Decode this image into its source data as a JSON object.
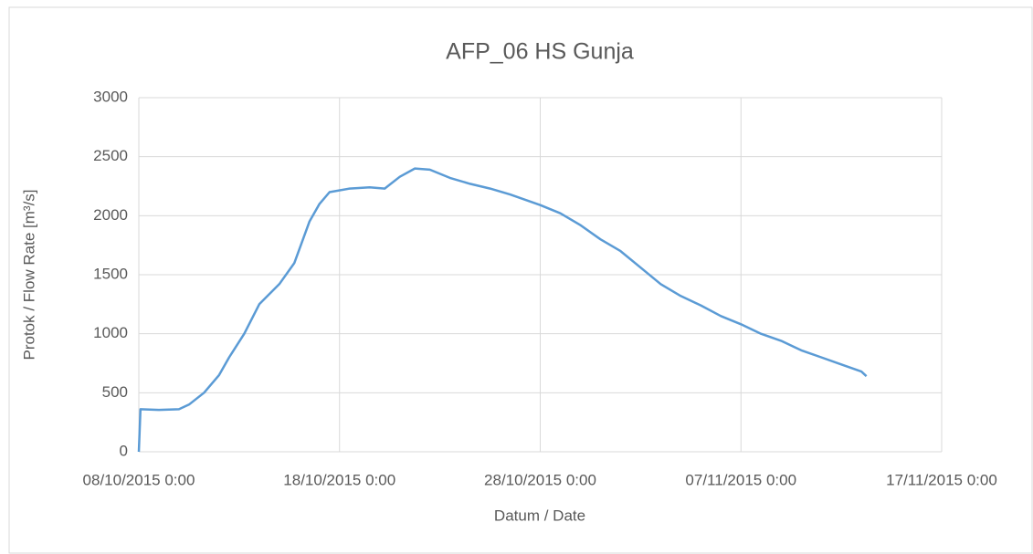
{
  "chart_data": {
    "type": "line",
    "title": "AFP_06 HS Gunja",
    "x_label": "Datum / Date",
    "y_label": "Protok / Flow Rate [m³/s]",
    "x": [
      "08/10/2015 0:00",
      "08/10/2015 2:00",
      "09/10/2015 0:00",
      "10/10/2015 0:00",
      "10/10/2015 12:00",
      "11/10/2015 6:00",
      "12/10/2015 0:00",
      "12/10/2015 12:00",
      "13/10/2015 6:00",
      "14/10/2015 0:00",
      "15/10/2015 0:00",
      "15/10/2015 18:00",
      "16/10/2015 12:00",
      "17/10/2015 0:00",
      "17/10/2015 12:00",
      "18/10/2015 12:00",
      "19/10/2015 12:00",
      "20/10/2015 6:00",
      "21/10/2015 0:00",
      "21/10/2015 18:00",
      "22/10/2015 12:00",
      "23/10/2015 12:00",
      "24/10/2015 12:00",
      "25/10/2015 12:00",
      "26/10/2015 12:00",
      "27/10/2015 12:00",
      "28/10/2015 0:00",
      "29/10/2015 0:00",
      "30/10/2015 0:00",
      "31/10/2015 0:00",
      "01/11/2015 0:00",
      "02/11/2015 0:00",
      "03/11/2015 0:00",
      "04/11/2015 0:00",
      "05/11/2015 0:00",
      "06/11/2015 0:00",
      "07/11/2015 0:00",
      "08/11/2015 0:00",
      "09/11/2015 0:00",
      "10/11/2015 0:00",
      "11/11/2015 0:00",
      "12/11/2015 0:00",
      "13/11/2015 0:00",
      "13/11/2015 6:00"
    ],
    "series": [
      {
        "name": "AFP_06 HS Gunja",
        "color": "#5b9bd5",
        "values": [
          0,
          360,
          355,
          360,
          400,
          500,
          650,
          800,
          1000,
          1250,
          1420,
          1600,
          1950,
          2100,
          2200,
          2230,
          2240,
          2230,
          2330,
          2400,
          2390,
          2320,
          2270,
          2230,
          2180,
          2120,
          2090,
          2020,
          1920,
          1800,
          1700,
          1560,
          1420,
          1320,
          1240,
          1150,
          1080,
          1000,
          940,
          860,
          800,
          740,
          680,
          640
        ]
      }
    ],
    "xlim": [
      "08/10/2015 0:00",
      "17/11/2015 0:00"
    ],
    "xticks": [
      "08/10/2015 0:00",
      "18/10/2015 0:00",
      "28/10/2015 0:00",
      "07/11/2015 0:00",
      "17/11/2015 0:00"
    ],
    "ylim": [
      0,
      3000
    ],
    "yticks": [
      0,
      500,
      1000,
      1500,
      2000,
      2500,
      3000
    ],
    "grid": true
  }
}
